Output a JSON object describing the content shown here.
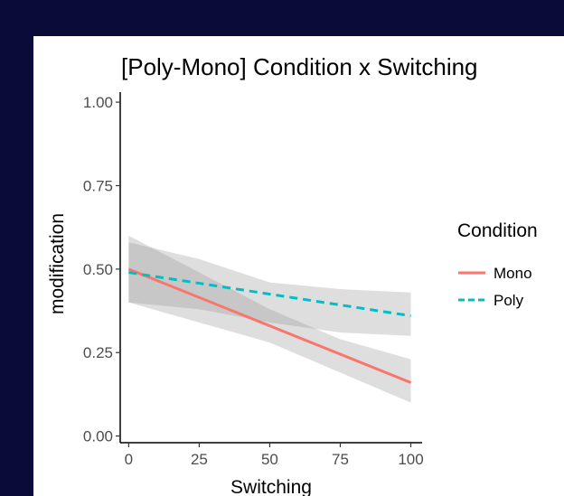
{
  "chart_data": {
    "type": "line",
    "title": "[Poly-Mono] Condition x Switching",
    "xlabel": "Switching",
    "ylabel": "modification",
    "xlim": [
      -3,
      104
    ],
    "ylim": [
      -0.02,
      1.03
    ],
    "x_ticks": [
      0,
      25,
      50,
      75,
      100
    ],
    "x_tick_labels": [
      "0",
      "25",
      "50",
      "75",
      "100"
    ],
    "y_ticks": [
      0,
      0.25,
      0.5,
      0.75,
      1.0
    ],
    "y_tick_labels": [
      "0.00",
      "0.25",
      "0.50",
      "0.75",
      "1.00"
    ],
    "grid": false,
    "legend": {
      "title": "Condition",
      "position": "right"
    },
    "series": [
      {
        "name": "Mono",
        "color": "#f8766d",
        "linetype": "solid",
        "x": [
          0,
          100
        ],
        "y": [
          0.5,
          0.16
        ],
        "ci_x": [
          0,
          25,
          50,
          75,
          100
        ],
        "ci_lower": [
          0.4,
          0.34,
          0.28,
          0.19,
          0.1
        ],
        "ci_upper": [
          0.6,
          0.49,
          0.38,
          0.29,
          0.23
        ]
      },
      {
        "name": "Poly",
        "color": "#00bfc4",
        "linetype": "dashed",
        "x": [
          0,
          100
        ],
        "y": [
          0.49,
          0.36
        ],
        "ci_x": [
          0,
          25,
          50,
          75,
          100
        ],
        "ci_lower": [
          0.4,
          0.38,
          0.34,
          0.31,
          0.3
        ],
        "ci_upper": [
          0.58,
          0.53,
          0.46,
          0.44,
          0.43
        ]
      }
    ]
  }
}
